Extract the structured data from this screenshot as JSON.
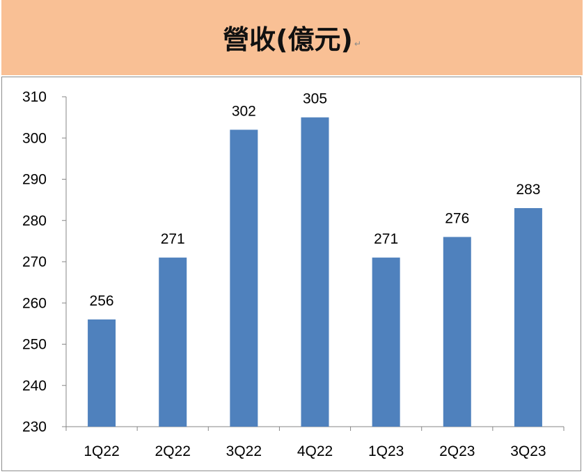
{
  "header": {
    "title": "營收(億元)",
    "return_mark": "↵",
    "background_color": "#f9c095"
  },
  "chart_data": {
    "type": "bar",
    "title": "營收(億元)",
    "categories": [
      "1Q22",
      "2Q22",
      "3Q22",
      "4Q22",
      "1Q23",
      "2Q23",
      "3Q23"
    ],
    "values": [
      256,
      271,
      302,
      305,
      271,
      276,
      283
    ],
    "value_labels": [
      "256",
      "271",
      "302",
      "305",
      "271",
      "276",
      "283"
    ],
    "ylim": [
      230,
      310
    ],
    "yticks": [
      230,
      240,
      250,
      260,
      270,
      280,
      290,
      300,
      310
    ],
    "xlabel": "",
    "ylabel": "",
    "grid": false,
    "legend": "none",
    "bar_color": "#4f81bd"
  }
}
